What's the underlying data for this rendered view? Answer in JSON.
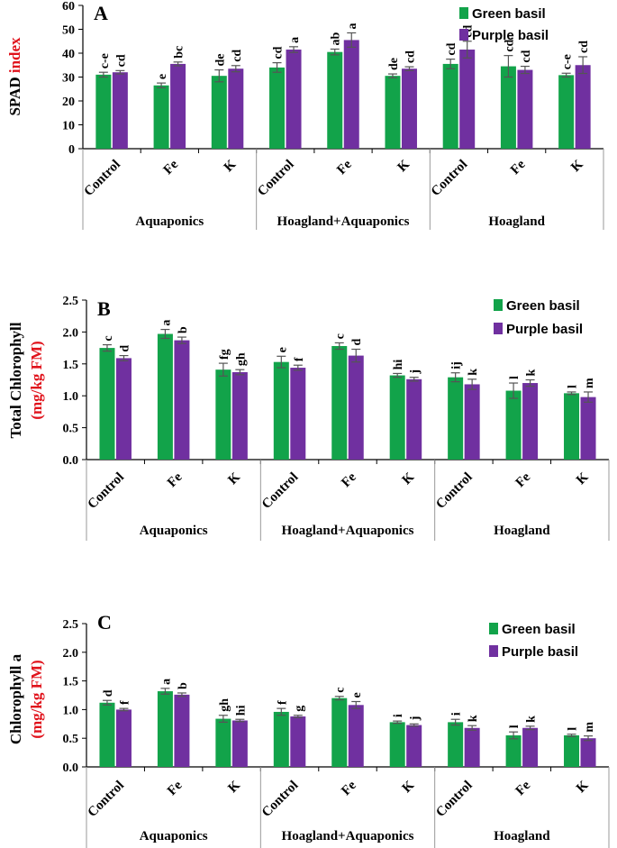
{
  "colors": {
    "green": "#12a34a",
    "purple": "#7030a0",
    "ylabel_accent": "#e0121b",
    "axis": "#000000",
    "divider": "#9a9a9a",
    "error": "#555555"
  },
  "chart_data": [
    {
      "type": "bar",
      "title": "A",
      "ylabel": {
        "main": "SPAD",
        "accent": "index"
      },
      "ylim": [
        0,
        60
      ],
      "yticks": [
        "0",
        "10",
        "20",
        "30",
        "40",
        "50",
        "60"
      ],
      "categories": [
        "Control",
        "Fe",
        "K",
        "Control",
        "Fe",
        "K",
        "Control",
        "Fe",
        "K"
      ],
      "groups": [
        "Aquaponics",
        "Hoagland+Aquaponics",
        "Hoagland"
      ],
      "legend": [
        "Green basil",
        "Purple basil"
      ],
      "series": [
        {
          "name": "Green basil",
          "values": [
            31.0,
            26.5,
            30.5,
            34.0,
            40.5,
            30.5,
            35.5,
            34.5,
            30.8
          ],
          "errors": [
            1.0,
            1.0,
            2.5,
            2.0,
            1.2,
            0.8,
            2.0,
            4.5,
            0.8
          ],
          "labels": [
            "c-e",
            "e",
            "de",
            "cd",
            "ab",
            "de",
            "cd",
            "cd",
            "c-e"
          ]
        },
        {
          "name": "Purple basil",
          "values": [
            32.0,
            35.5,
            33.5,
            41.5,
            45.5,
            33.5,
            41.5,
            33.0,
            35.0
          ],
          "errors": [
            0.7,
            0.8,
            1.3,
            1.2,
            3.0,
            0.8,
            3.5,
            1.5,
            3.5
          ],
          "labels": [
            "cd",
            "bc",
            "cd",
            "a",
            "a",
            "cd",
            "cd",
            "cd",
            "cd"
          ]
        }
      ]
    },
    {
      "type": "bar",
      "title": "B",
      "ylabel": {
        "main": "Total Chlorophyll",
        "accent": "(mg/kg FM)"
      },
      "ylim": [
        0,
        2.5
      ],
      "yticks": [
        "0.0",
        "0.5",
        "1.0",
        "1.5",
        "2.0",
        "2.5"
      ],
      "categories": [
        "Control",
        "Fe",
        "K",
        "Control",
        "Fe",
        "K",
        "Control",
        "Fe",
        "K"
      ],
      "groups": [
        "Aquaponics",
        "Hoagland+Aquaponics",
        "Hoagland"
      ],
      "legend": [
        "Green basil",
        "Purple basil"
      ],
      "series": [
        {
          "name": "Green basil",
          "values": [
            1.75,
            1.97,
            1.41,
            1.53,
            1.78,
            1.32,
            1.29,
            1.08,
            1.04
          ],
          "errors": [
            0.05,
            0.07,
            0.1,
            0.09,
            0.05,
            0.03,
            0.07,
            0.12,
            0.02
          ],
          "labels": [
            "c",
            "a",
            "fg",
            "e",
            "c",
            "hi",
            "ij",
            "l",
            "l"
          ]
        },
        {
          "name": "Purple basil",
          "values": [
            1.59,
            1.87,
            1.37,
            1.44,
            1.63,
            1.26,
            1.18,
            1.2,
            0.98
          ],
          "errors": [
            0.04,
            0.05,
            0.04,
            0.04,
            0.1,
            0.03,
            0.08,
            0.05,
            0.08
          ],
          "labels": [
            "d",
            "b",
            "gh",
            "f",
            "d",
            "j",
            "k",
            "k",
            "m"
          ]
        }
      ]
    },
    {
      "type": "bar",
      "title": "C",
      "ylabel": {
        "main": "Chlorophyll a",
        "accent": "(mg/kg FM)"
      },
      "ylim": [
        0,
        2.5
      ],
      "yticks": [
        "0.0",
        "0.5",
        "1.0",
        "1.5",
        "2.0",
        "2.5"
      ],
      "categories": [
        "Control",
        "Fe",
        "K",
        "Control",
        "Fe",
        "K",
        "Control",
        "Fe",
        "K"
      ],
      "groups": [
        "Aquaponics",
        "Hoagland+Aquaponics",
        "Hoagland"
      ],
      "legend": [
        "Green basil",
        "Purple basil"
      ],
      "series": [
        {
          "name": "Green basil",
          "values": [
            1.12,
            1.32,
            0.84,
            0.96,
            1.2,
            0.78,
            0.78,
            0.55,
            0.55
          ],
          "errors": [
            0.04,
            0.05,
            0.06,
            0.06,
            0.03,
            0.02,
            0.05,
            0.06,
            0.02
          ],
          "labels": [
            "d",
            "a",
            "gh",
            "f",
            "c",
            "i",
            "i",
            "l",
            "l"
          ]
        },
        {
          "name": "Purple basil",
          "values": [
            1.0,
            1.26,
            0.81,
            0.88,
            1.08,
            0.73,
            0.68,
            0.68,
            0.5
          ],
          "errors": [
            0.02,
            0.03,
            0.02,
            0.02,
            0.06,
            0.02,
            0.04,
            0.03,
            0.04
          ],
          "labels": [
            "f",
            "b",
            "hi",
            "g",
            "e",
            "j",
            "k",
            "k",
            "m"
          ]
        }
      ]
    }
  ]
}
